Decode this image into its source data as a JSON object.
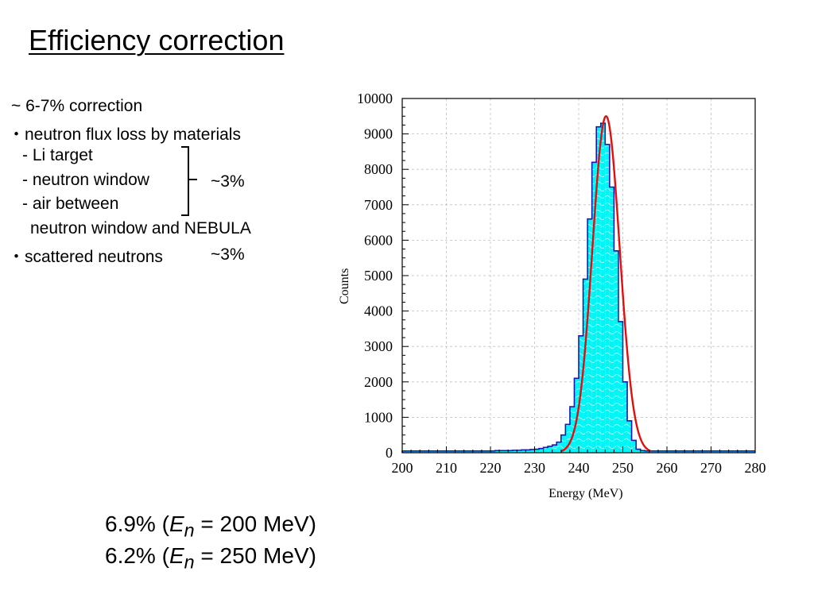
{
  "slide": {
    "title": "Efficiency correction",
    "bullets": {
      "overall": "~ 6-7% correction",
      "flux_loss": "・neutron flux loss by materials",
      "li_target": "- Li target",
      "neutron_window": "- neutron window",
      "air_between": "- air between",
      "air_between_cont": "neutron window and NEBULA",
      "scattered": "・scattered neutrons"
    },
    "flux_loss_value": "~3%",
    "scattered_value": "~3%",
    "results": [
      {
        "percent": "6.9% (",
        "symbol": "E",
        "subscript": "n",
        "energy": " = 200 MeV)"
      },
      {
        "percent": "6.2% (",
        "symbol": "E",
        "subscript": "n",
        "energy": " = 250 MeV)"
      }
    ]
  },
  "chart_data": {
    "type": "bar",
    "xlabel": "Energy (MeV)",
    "ylabel": "Counts",
    "xlim": [
      200,
      280
    ],
    "ylim": [
      0,
      10000
    ],
    "xticks": [
      200,
      210,
      220,
      230,
      240,
      250,
      260,
      270,
      280
    ],
    "yticks": [
      0,
      1000,
      2000,
      3000,
      4000,
      5000,
      6000,
      7000,
      8000,
      9000,
      10000
    ],
    "grid": true,
    "colors": {
      "histogram_fill": "#00f5f5",
      "histogram_edge": "#1a1aaa",
      "fit": "#dd1010",
      "grid": "#c0c0c0"
    },
    "histogram": {
      "bin_width": 1,
      "x": [
        200,
        201,
        202,
        203,
        204,
        205,
        206,
        207,
        208,
        209,
        210,
        211,
        212,
        213,
        214,
        215,
        216,
        217,
        218,
        219,
        220,
        221,
        222,
        223,
        224,
        225,
        226,
        227,
        228,
        229,
        230,
        231,
        232,
        233,
        234,
        235,
        236,
        237,
        238,
        239,
        240,
        241,
        242,
        243,
        244,
        245,
        246,
        247,
        248,
        249,
        250,
        251,
        252,
        253,
        254,
        255,
        256,
        257,
        258,
        259,
        260,
        261,
        262,
        263,
        264,
        265,
        266,
        267,
        268,
        269,
        270,
        271,
        272,
        273,
        274,
        275,
        276,
        277,
        278,
        279
      ],
      "values": [
        50,
        50,
        50,
        50,
        50,
        50,
        50,
        50,
        50,
        50,
        50,
        50,
        50,
        50,
        50,
        50,
        50,
        50,
        50,
        50,
        50,
        60,
        60,
        60,
        60,
        70,
        70,
        80,
        80,
        90,
        100,
        120,
        150,
        180,
        220,
        300,
        500,
        800,
        1300,
        2100,
        3300,
        4900,
        6600,
        8200,
        9200,
        9300,
        8700,
        7500,
        5700,
        3700,
        2000,
        900,
        350,
        100,
        60,
        50,
        50,
        50,
        50,
        50,
        50,
        50,
        50,
        50,
        50,
        50,
        50,
        50,
        50,
        50,
        50,
        50,
        50,
        50,
        50,
        50,
        50,
        50,
        50,
        50
      ]
    },
    "fit": {
      "type": "gaussian",
      "mean": 246.2,
      "sigma": 3.1,
      "peak": 9500
    }
  }
}
